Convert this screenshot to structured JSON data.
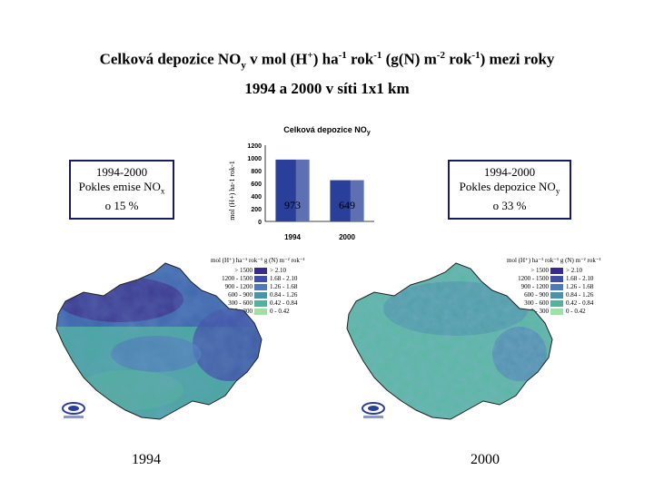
{
  "title": {
    "line1_a": "Celková depozice NO",
    "line1_sub": "y",
    "line1_b": " v mol (H",
    "line1_sup1": "+",
    "line1_c": ") ha",
    "line1_sup2": "-1",
    "line1_d": " rok",
    "line1_sup3": "-1",
    "line1_e": "  (g(N) m",
    "line1_sup4": "-2",
    "line1_f": " rok",
    "line1_sup5": "-1",
    "line1_g": ") mezi roky",
    "line2": "1994 a 2000 v síti 1x1 km"
  },
  "left_box": {
    "line1": "1994-2000",
    "line2_a": "Pokles emise NO",
    "line2_sub": "x",
    "line3": "o 15 %"
  },
  "right_box": {
    "line1": "1994-2000",
    "line2_a": "Pokles depozice NO",
    "line2_sub": "y",
    "line3": "o 33 %"
  },
  "chart_data": {
    "type": "bar",
    "title": "Celková depozice NOy",
    "ylabel": "mol (H+) ha-1 rok-1",
    "categories": [
      "1994",
      "2000"
    ],
    "values": [
      973,
      649
    ],
    "value_labels": [
      "973",
      "649"
    ],
    "ylim": [
      0,
      1200
    ],
    "yticks": [
      "0",
      "200",
      "400",
      "600",
      "800",
      "1000",
      "1200"
    ],
    "bar_color": "#2a3f9a"
  },
  "legend": {
    "header": "mol (H⁺) ha⁻¹ rok⁻¹   g (N) m⁻² rok⁻¹",
    "rows": [
      {
        "mol": "> 1500",
        "gn": "> 2.10",
        "color": "#3a2a8a"
      },
      {
        "mol": "1200 - 1500",
        "gn": "1.68 - 2.10",
        "color": "#3f4fa6"
      },
      {
        "mol": "900 - 1200",
        "gn": "1.26 - 1.68",
        "color": "#4d7ab8"
      },
      {
        "mol": "600 - 900",
        "gn": "0.84 - 1.26",
        "color": "#4a93a8"
      },
      {
        "mol": "300 - 600",
        "gn": "0.42 - 0.84",
        "color": "#55b09c"
      },
      {
        "mol": "0 - 300",
        "gn": "0 - 0.42",
        "color": "#9fe0a4"
      }
    ]
  },
  "maps": [
    {
      "year": "1994"
    },
    {
      "year": "2000"
    }
  ]
}
